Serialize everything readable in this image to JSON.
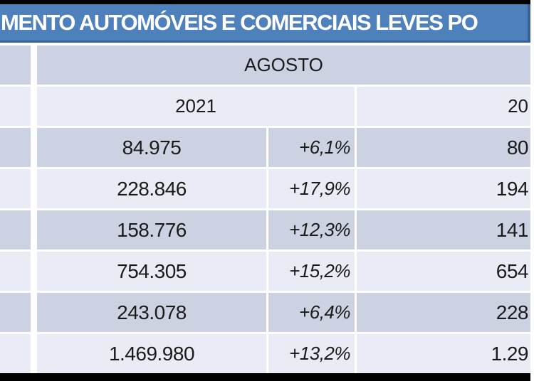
{
  "title": {
    "visible_text": "MENTO AUTOMÓVEIS E COMERCIAIS LEVES PO"
  },
  "table": {
    "period_header": "AGOSTO",
    "year_left_header": "2021",
    "year_right_header_partial": "20",
    "rows": [
      {
        "value_2021": "84.975",
        "pct_change": "+6,1%",
        "value_right_partial": "80"
      },
      {
        "value_2021": "228.846",
        "pct_change": "+17,9%",
        "value_right_partial": "194"
      },
      {
        "value_2021": "158.776",
        "pct_change": "+12,3%",
        "value_right_partial": "141"
      },
      {
        "value_2021": "754.305",
        "pct_change": "+15,2%",
        "value_right_partial": "654"
      },
      {
        "value_2021": "243.078",
        "pct_change": "+6,4%",
        "value_right_partial": "228"
      },
      {
        "value_2021": "1.469.980",
        "pct_change": "+13,2%",
        "value_right_partial": "1.29"
      }
    ]
  },
  "colors": {
    "banner_blue": "#4e80bb",
    "banner_border_blue": "#37609b",
    "row_dark": "#ccd2e2",
    "row_light": "#e9ecf4",
    "frame_black": "#000000",
    "text": "#1b1b1b",
    "title_text": "#ffffff"
  }
}
